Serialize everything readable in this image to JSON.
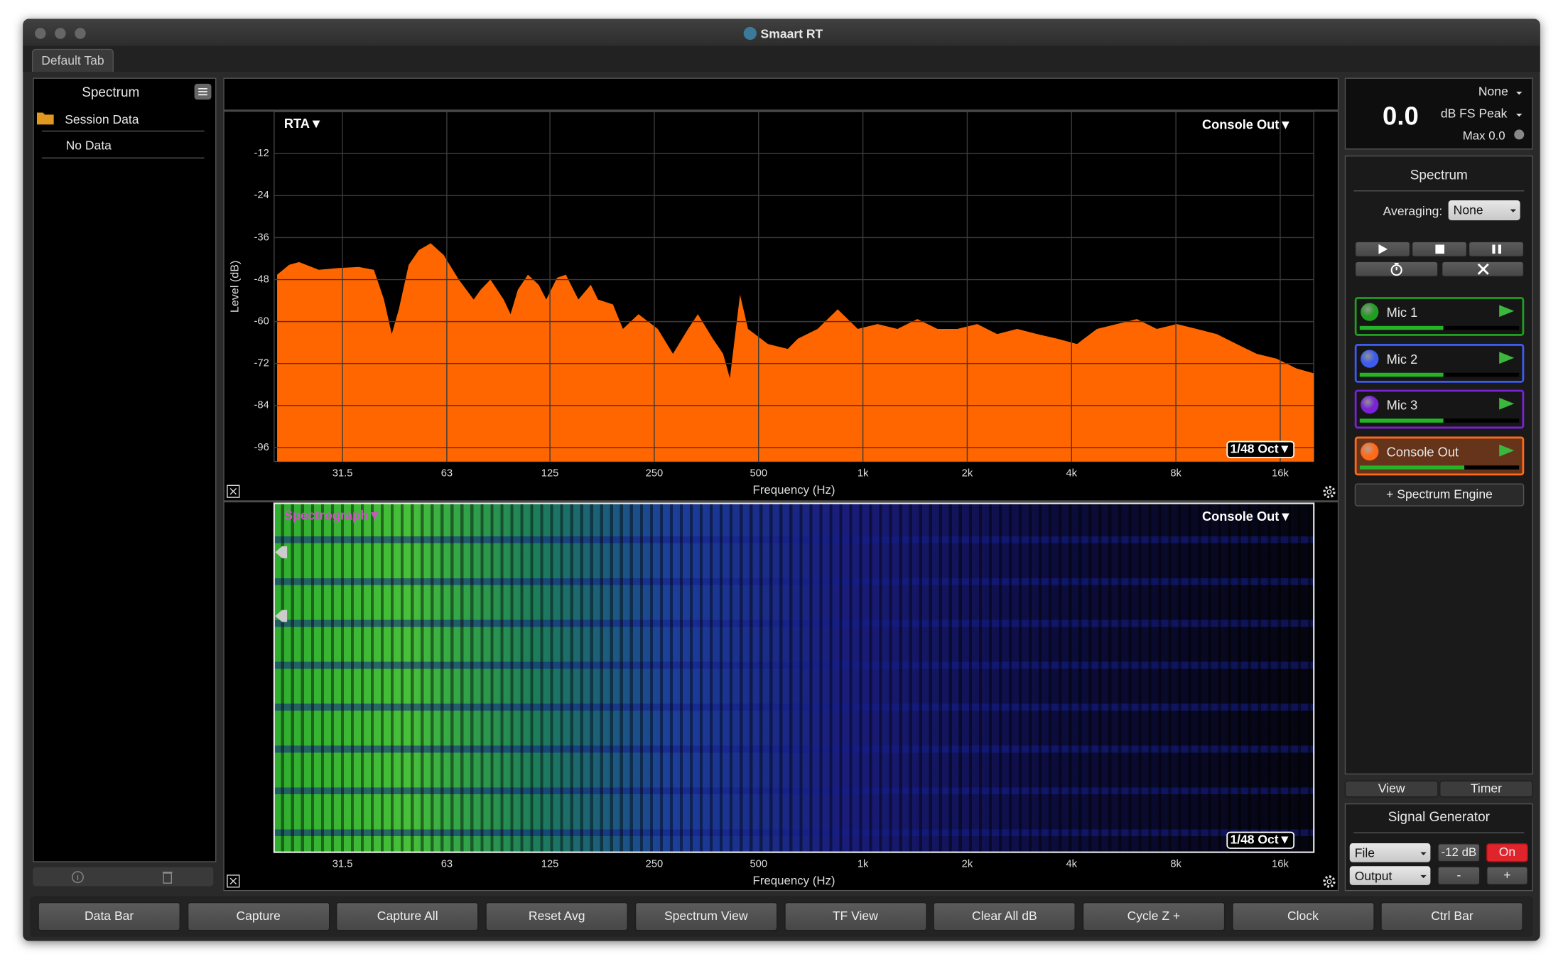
{
  "window": {
    "title": "Smaart RT",
    "tab": "Default Tab"
  },
  "data_bar": {
    "title": "Spectrum",
    "folder": "Session Data",
    "item": "No Data"
  },
  "meter": {
    "value": "0.0",
    "source": "None",
    "unit": "dB FS Peak",
    "max": "Max 0.0"
  },
  "engine": {
    "title": "Spectrum",
    "averaging_label": "Averaging:",
    "averaging": "None",
    "channels": [
      {
        "name": "Mic 1",
        "color": "#1f9e1f"
      },
      {
        "name": "Mic 2",
        "color": "#3c5cf0"
      },
      {
        "name": "Mic 3",
        "color": "#7a22d6"
      },
      {
        "name": "Console Out",
        "color": "#ff6a1a"
      }
    ],
    "add_button": "+ Spectrum Engine"
  },
  "tabs": [
    "View",
    "Timer"
  ],
  "signal_generator": {
    "title": "Signal Generator",
    "source": "File",
    "level": "-12 dB",
    "state": "On",
    "output": "Output",
    "minus": "-",
    "plus": "+"
  },
  "buttons": [
    "Data Bar",
    "Capture",
    "Capture All",
    "Reset Avg",
    "Spectrum View",
    "TF View",
    "Clear All dB",
    "Cycle Z +",
    "Clock",
    "Ctrl Bar"
  ],
  "chart_data": [
    {
      "type": "area",
      "label": "RTA▼",
      "source": "Console Out▼",
      "resolution": "1/48 Oct▼",
      "ylabel": "Level (dB)",
      "xlabel": "Frequency (Hz)",
      "xscale": "log",
      "xlim": [
        20,
        20000
      ],
      "ylim": [
        -100,
        0
      ],
      "xticks": [
        31.5,
        63,
        125,
        250,
        500,
        {
          "value": 1000,
          "label": "1k"
        },
        {
          "value": 2000,
          "label": "2k"
        },
        {
          "value": 4000,
          "label": "4k"
        },
        {
          "value": 8000,
          "label": "8k"
        },
        {
          "value": 16000,
          "label": "16k"
        }
      ],
      "yticks": [
        -12,
        -24,
        -36,
        -48,
        -60,
        -72,
        -84,
        -96
      ],
      "grid": true,
      "color": "#ff6600",
      "x": [
        20.4,
        22.1,
        23.6,
        26.9,
        30.8,
        35.1,
        38.8,
        41.5,
        43.7,
        45.8,
        48.9,
        52.3,
        56.6,
        61.7,
        68.2,
        75.3,
        78.9,
        84.2,
        91.9,
        96.2,
        101,
        108,
        116,
        122,
        131,
        139,
        151,
        164,
        172,
        190,
        203,
        225,
        256,
        283,
        313,
        334,
        369,
        395,
        413,
        442,
        466,
        532,
        607,
        649,
        740,
        846,
        966,
        1102,
        1258,
        1436,
        1641,
        1873,
        2138,
        2441,
        2786,
        3183,
        3633,
        4148,
        4736,
        5406,
        6174,
        7048,
        8047,
        9187,
        10489,
        11980,
        13675,
        15610,
        17820,
        20000
      ],
      "values": [
        -46.6,
        -43.8,
        -43.0,
        -45.2,
        -44.7,
        -44.4,
        -45.2,
        -53.7,
        -63.6,
        -56.5,
        -43.8,
        -39.6,
        -37.6,
        -41.0,
        -48.0,
        -53.7,
        -50.9,
        -48.0,
        -53.7,
        -57.9,
        -50.9,
        -46.6,
        -49.5,
        -53.7,
        -47.5,
        -46.6,
        -53.7,
        -49.5,
        -53.7,
        -55.1,
        -62.1,
        -57.9,
        -62.1,
        -69.2,
        -62.1,
        -57.9,
        -64.9,
        -69.2,
        -76.2,
        -52.3,
        -62.1,
        -66.4,
        -67.8,
        -64.9,
        -62.1,
        -56.5,
        -62.1,
        -60.7,
        -62.1,
        -59.3,
        -62.1,
        -62.1,
        -60.7,
        -63.6,
        -62.1,
        -63.6,
        -64.9,
        -66.4,
        -62.1,
        -60.7,
        -59.3,
        -62.1,
        -60.7,
        -62.1,
        -63.6,
        -66.4,
        -69.2,
        -70.6,
        -73.4,
        -74.8
      ]
    },
    {
      "type": "spectrograph",
      "label": "Spectrograph▼",
      "source": "Console Out▼",
      "resolution": "1/48 Oct▼",
      "xlabel": "Frequency (Hz)",
      "xscale": "log",
      "xlim": [
        20,
        20000
      ],
      "xticks": [
        31.5,
        63,
        125,
        250,
        500,
        {
          "value": 1000,
          "label": "1k"
        },
        {
          "value": 2000,
          "label": "2k"
        },
        {
          "value": 4000,
          "label": "4k"
        },
        {
          "value": 8000,
          "label": "8k"
        },
        {
          "value": 16000,
          "label": "16k"
        }
      ]
    }
  ]
}
